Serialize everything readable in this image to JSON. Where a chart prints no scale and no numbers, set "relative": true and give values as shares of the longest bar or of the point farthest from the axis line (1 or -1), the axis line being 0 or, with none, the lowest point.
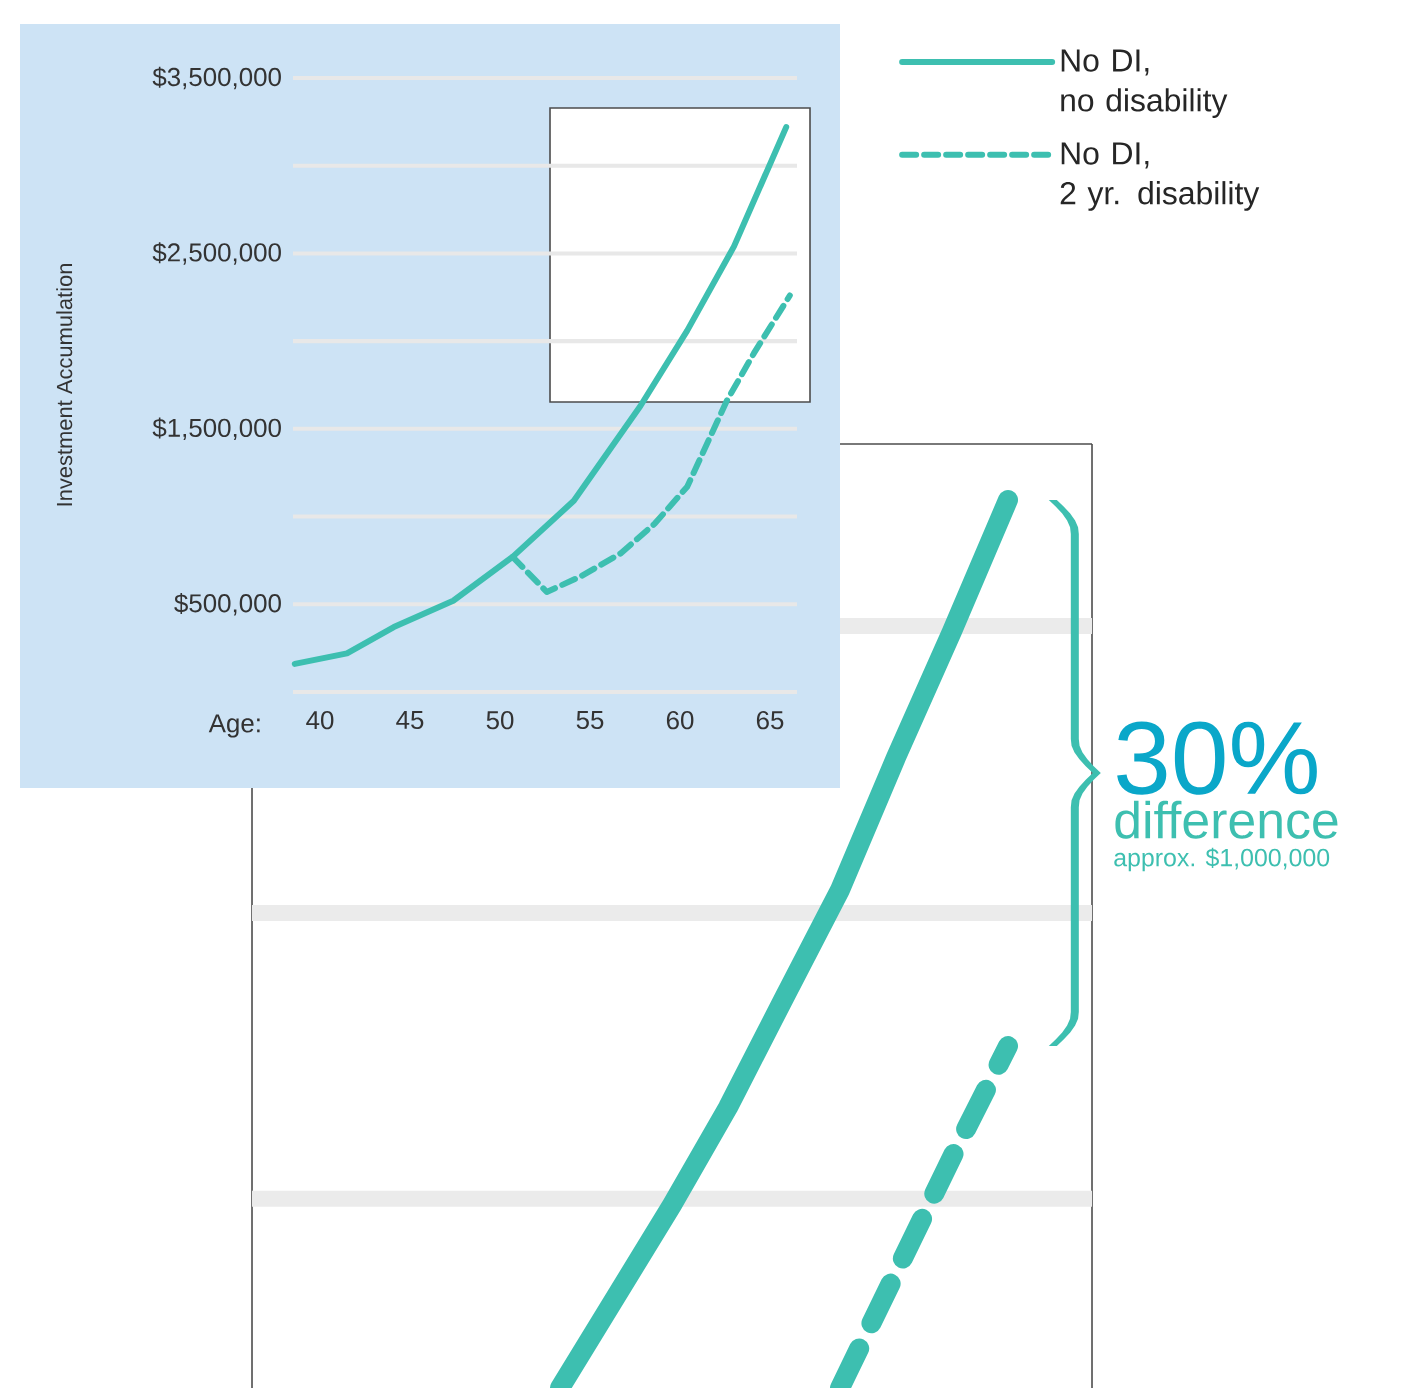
{
  "chart_data": [
    {
      "type": "line",
      "xlabel": "Age:",
      "ylabel": "Investment Accumulation",
      "xlim": [
        38.5,
        66.5
      ],
      "ylim": [
        0,
        3500000
      ],
      "xticks": [
        40,
        45,
        50,
        55,
        60,
        65
      ],
      "yticks": [
        {
          "value": 0,
          "label": null
        },
        {
          "value": 500000,
          "label": "$500,000"
        },
        {
          "value": 1000000,
          "label": null
        },
        {
          "value": 1500000,
          "label": "$1,500,000"
        },
        {
          "value": 2000000,
          "label": null
        },
        {
          "value": 2500000,
          "label": "$2,500,000"
        },
        {
          "value": 3000000,
          "label": null
        },
        {
          "value": 3500000,
          "label": "$3,500,000"
        }
      ],
      "grid": "y",
      "legend": "top right",
      "marker": "none",
      "series": [
        {
          "name": "No DI, no disability",
          "color": "#3dbfb0",
          "line_style": "solid",
          "x": [
            38.6,
            41.5,
            44.1,
            47.4,
            50.7,
            54.1,
            57.8,
            60.4,
            63.0,
            65.9
          ],
          "values": [
            160000,
            220000,
            370000,
            520000,
            770000,
            1090000,
            1630000,
            2060000,
            2540000,
            3220000
          ]
        },
        {
          "name": "No DI, 2 yr. disability",
          "color": "#3dbfb0",
          "line_style": "dashed",
          "x": [
            50.7,
            52.6,
            54.5,
            56.7,
            58.6,
            60.4,
            62.6,
            64.1,
            66.1
          ],
          "values": [
            770000,
            570000,
            660000,
            790000,
            960000,
            1170000,
            1660000,
            1930000,
            2260000
          ]
        }
      ]
    },
    {
      "type": "line",
      "relative": true,
      "categories": [
        null,
        null,
        null,
        null,
        null,
        null,
        null,
        null,
        null,
        null,
        null,
        null,
        null,
        null,
        null
      ],
      "marker": "none",
      "ref_lines": [
        {
          "axis": "y",
          "value": 0.213,
          "color": "#ebebeb"
        },
        {
          "axis": "y",
          "value": 0.535,
          "color": "#ebebeb"
        },
        {
          "axis": "y",
          "value": 0.858,
          "color": "#ebebeb"
        }
      ],
      "annotations": [
        "30%",
        "difference",
        "approx. $1,000,000"
      ],
      "series": [
        {
          "color": "#3dbfb0",
          "line_style": "solid",
          "values": [
            null,
            null,
            null,
            null,
            null,
            0,
            0.103,
            0.206,
            0.316,
            0.439,
            0.561,
            0.71,
            0.852,
            1,
            null
          ]
        },
        {
          "color": "#3dbfb0",
          "line_style": "dashed",
          "values": [
            null,
            null,
            null,
            null,
            null,
            null,
            null,
            null,
            null,
            null,
            0,
            0.13,
            0.26,
            0.385,
            null
          ]
        }
      ]
    }
  ]
}
